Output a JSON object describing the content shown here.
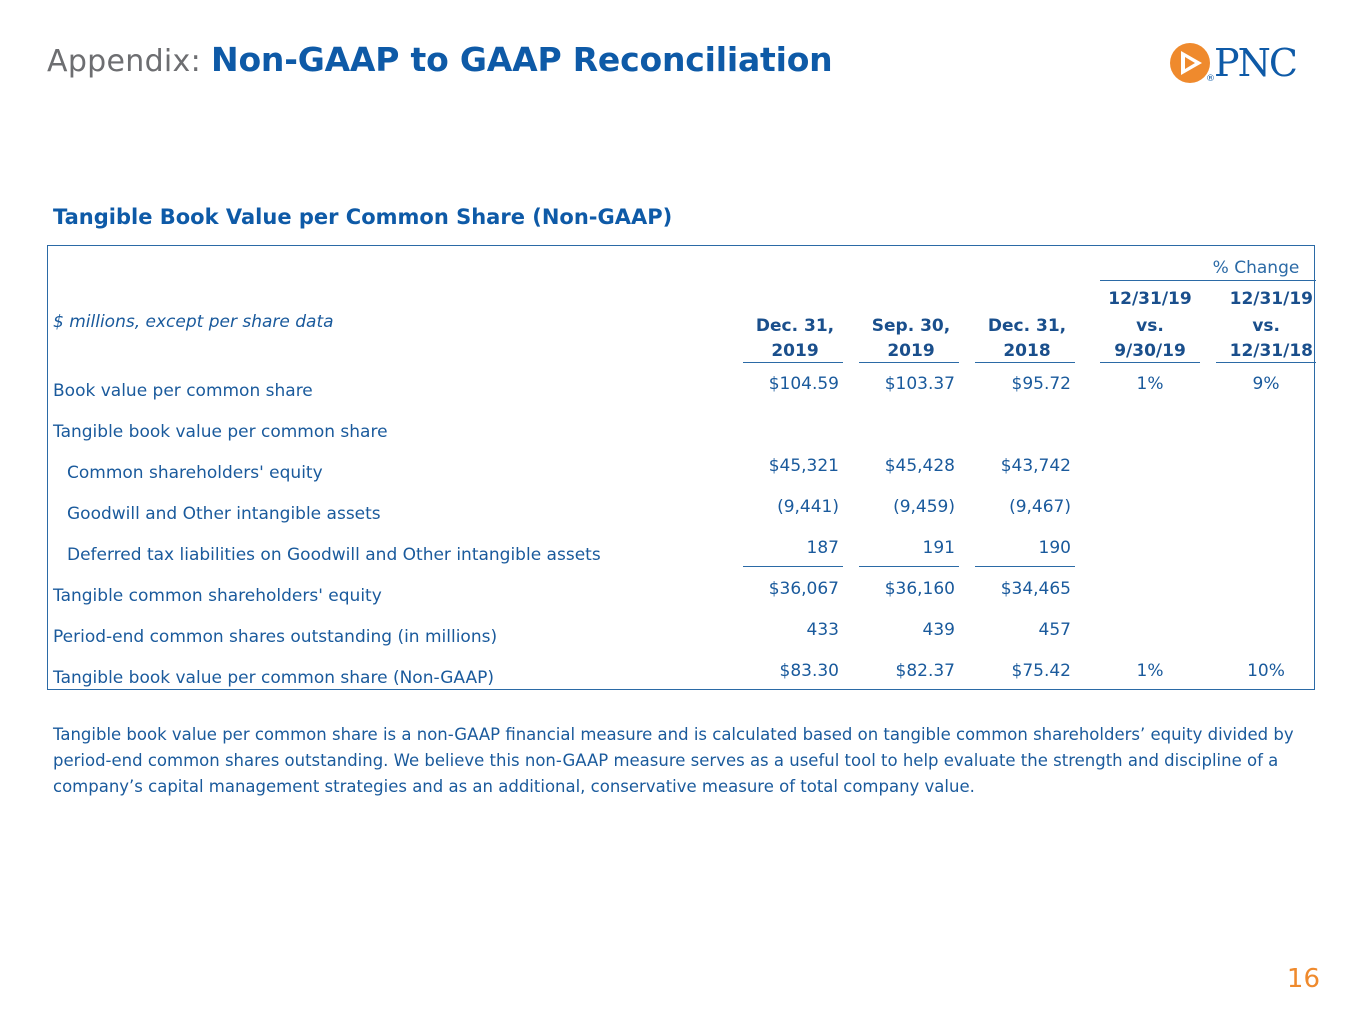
{
  "header": {
    "prefix": "Appendix:",
    "title": "Non-GAAP to GAAP Reconciliation"
  },
  "logo": {
    "text": "PNC",
    "registered": "®",
    "colors": {
      "orange": "#ef8a2d",
      "blue": "#0e5aa7"
    }
  },
  "section_title": "Tangible Book Value per Common Share (Non-GAAP)",
  "table": {
    "units_label": "$ millions, except per share data",
    "pct_change_label": "% Change",
    "columns": [
      {
        "line1": "Dec. 31,",
        "line2": "2019"
      },
      {
        "line1": "Sep. 30,",
        "line2": "2019"
      },
      {
        "line1": "Dec. 31,",
        "line2": "2018"
      },
      {
        "line0": "12/31/19",
        "line1": "vs.",
        "line2": "9/30/19"
      },
      {
        "line0": "12/31/19",
        "line1": "vs.",
        "line2": "12/31/18"
      }
    ],
    "rows": [
      {
        "label": "Book value per common share",
        "values": [
          "$104.59",
          "$103.37",
          "$95.72",
          "1%",
          "9%"
        ]
      },
      {
        "label": "Tangible book value per common share",
        "values": [
          "",
          "",
          "",
          "",
          ""
        ]
      },
      {
        "label": "Common shareholders' equity",
        "values": [
          "$45,321",
          "$45,428",
          "$43,742",
          "",
          ""
        ]
      },
      {
        "label": "Goodwill and Other intangible assets",
        "values": [
          "(9,441)",
          "(9,459)",
          "(9,467)",
          "",
          ""
        ]
      },
      {
        "label": "Deferred tax liabilities on Goodwill and Other intangible assets",
        "values": [
          "187",
          "191",
          "190",
          "",
          ""
        ]
      },
      {
        "label": "Tangible common shareholders' equity",
        "values": [
          "$36,067",
          "$36,160",
          "$34,465",
          "",
          ""
        ]
      },
      {
        "label": "Period-end common shares outstanding (in millions)",
        "values": [
          "433",
          "439",
          "457",
          "",
          ""
        ]
      },
      {
        "label": "Tangible book value per common share (Non-GAAP)",
        "values": [
          "$83.30",
          "$82.37",
          "$75.42",
          "1%",
          "10%"
        ]
      }
    ]
  },
  "footnote": "Tangible book value per common share is a non-GAAP financial measure and is calculated based on tangible common shareholders’ equity divided by period-end common shares outstanding. We believe this non-GAAP measure serves as a useful tool to help evaluate the strength and discipline of a company’s capital management strategies and as an additional, conservative measure of total company value.",
  "page_number": "16"
}
